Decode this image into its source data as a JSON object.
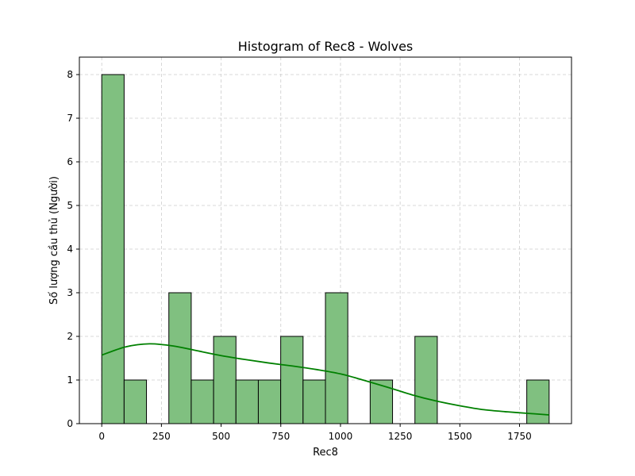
{
  "chart_data": {
    "type": "bar",
    "title": "Histogram of Rec8 - Wolves",
    "xlabel": "Rec8",
    "ylabel": "Số lượng cầu thủ (Người)",
    "xlim": [
      -93.7,
      1967.7
    ],
    "ylim": [
      0,
      8.4
    ],
    "xticks": [
      0,
      250,
      500,
      750,
      1000,
      1250,
      1500,
      1750
    ],
    "yticks": [
      0,
      1,
      2,
      3,
      4,
      5,
      6,
      7,
      8
    ],
    "grid": true,
    "bin_edges": [
      0,
      93.7,
      187.4,
      281.1,
      374.8,
      468.5,
      562.2,
      655.9,
      749.6,
      843.3,
      937.0,
      1030.7,
      1124.4,
      1218.1,
      1311.8,
      1405.5,
      1499.2,
      1592.9,
      1686.6,
      1780.3,
      1874.0
    ],
    "counts": [
      8,
      1,
      0,
      3,
      1,
      2,
      1,
      1,
      2,
      1,
      3,
      0,
      1,
      0,
      2,
      0,
      0,
      0,
      0,
      1
    ],
    "kde": {
      "x": [
        0,
        100,
        200,
        300,
        400,
        500,
        600,
        700,
        800,
        900,
        1000,
        1100,
        1200,
        1300,
        1400,
        1500,
        1600,
        1700,
        1800,
        1874
      ],
      "y": [
        1.57,
        1.76,
        1.83,
        1.78,
        1.67,
        1.56,
        1.47,
        1.39,
        1.32,
        1.24,
        1.14,
        0.99,
        0.83,
        0.66,
        0.52,
        0.41,
        0.32,
        0.27,
        0.23,
        0.2
      ]
    },
    "colors": {
      "bar_fill": "#80c080",
      "bar_edge": "#000000",
      "kde_line": "#008000",
      "grid": "#cccccc"
    }
  }
}
